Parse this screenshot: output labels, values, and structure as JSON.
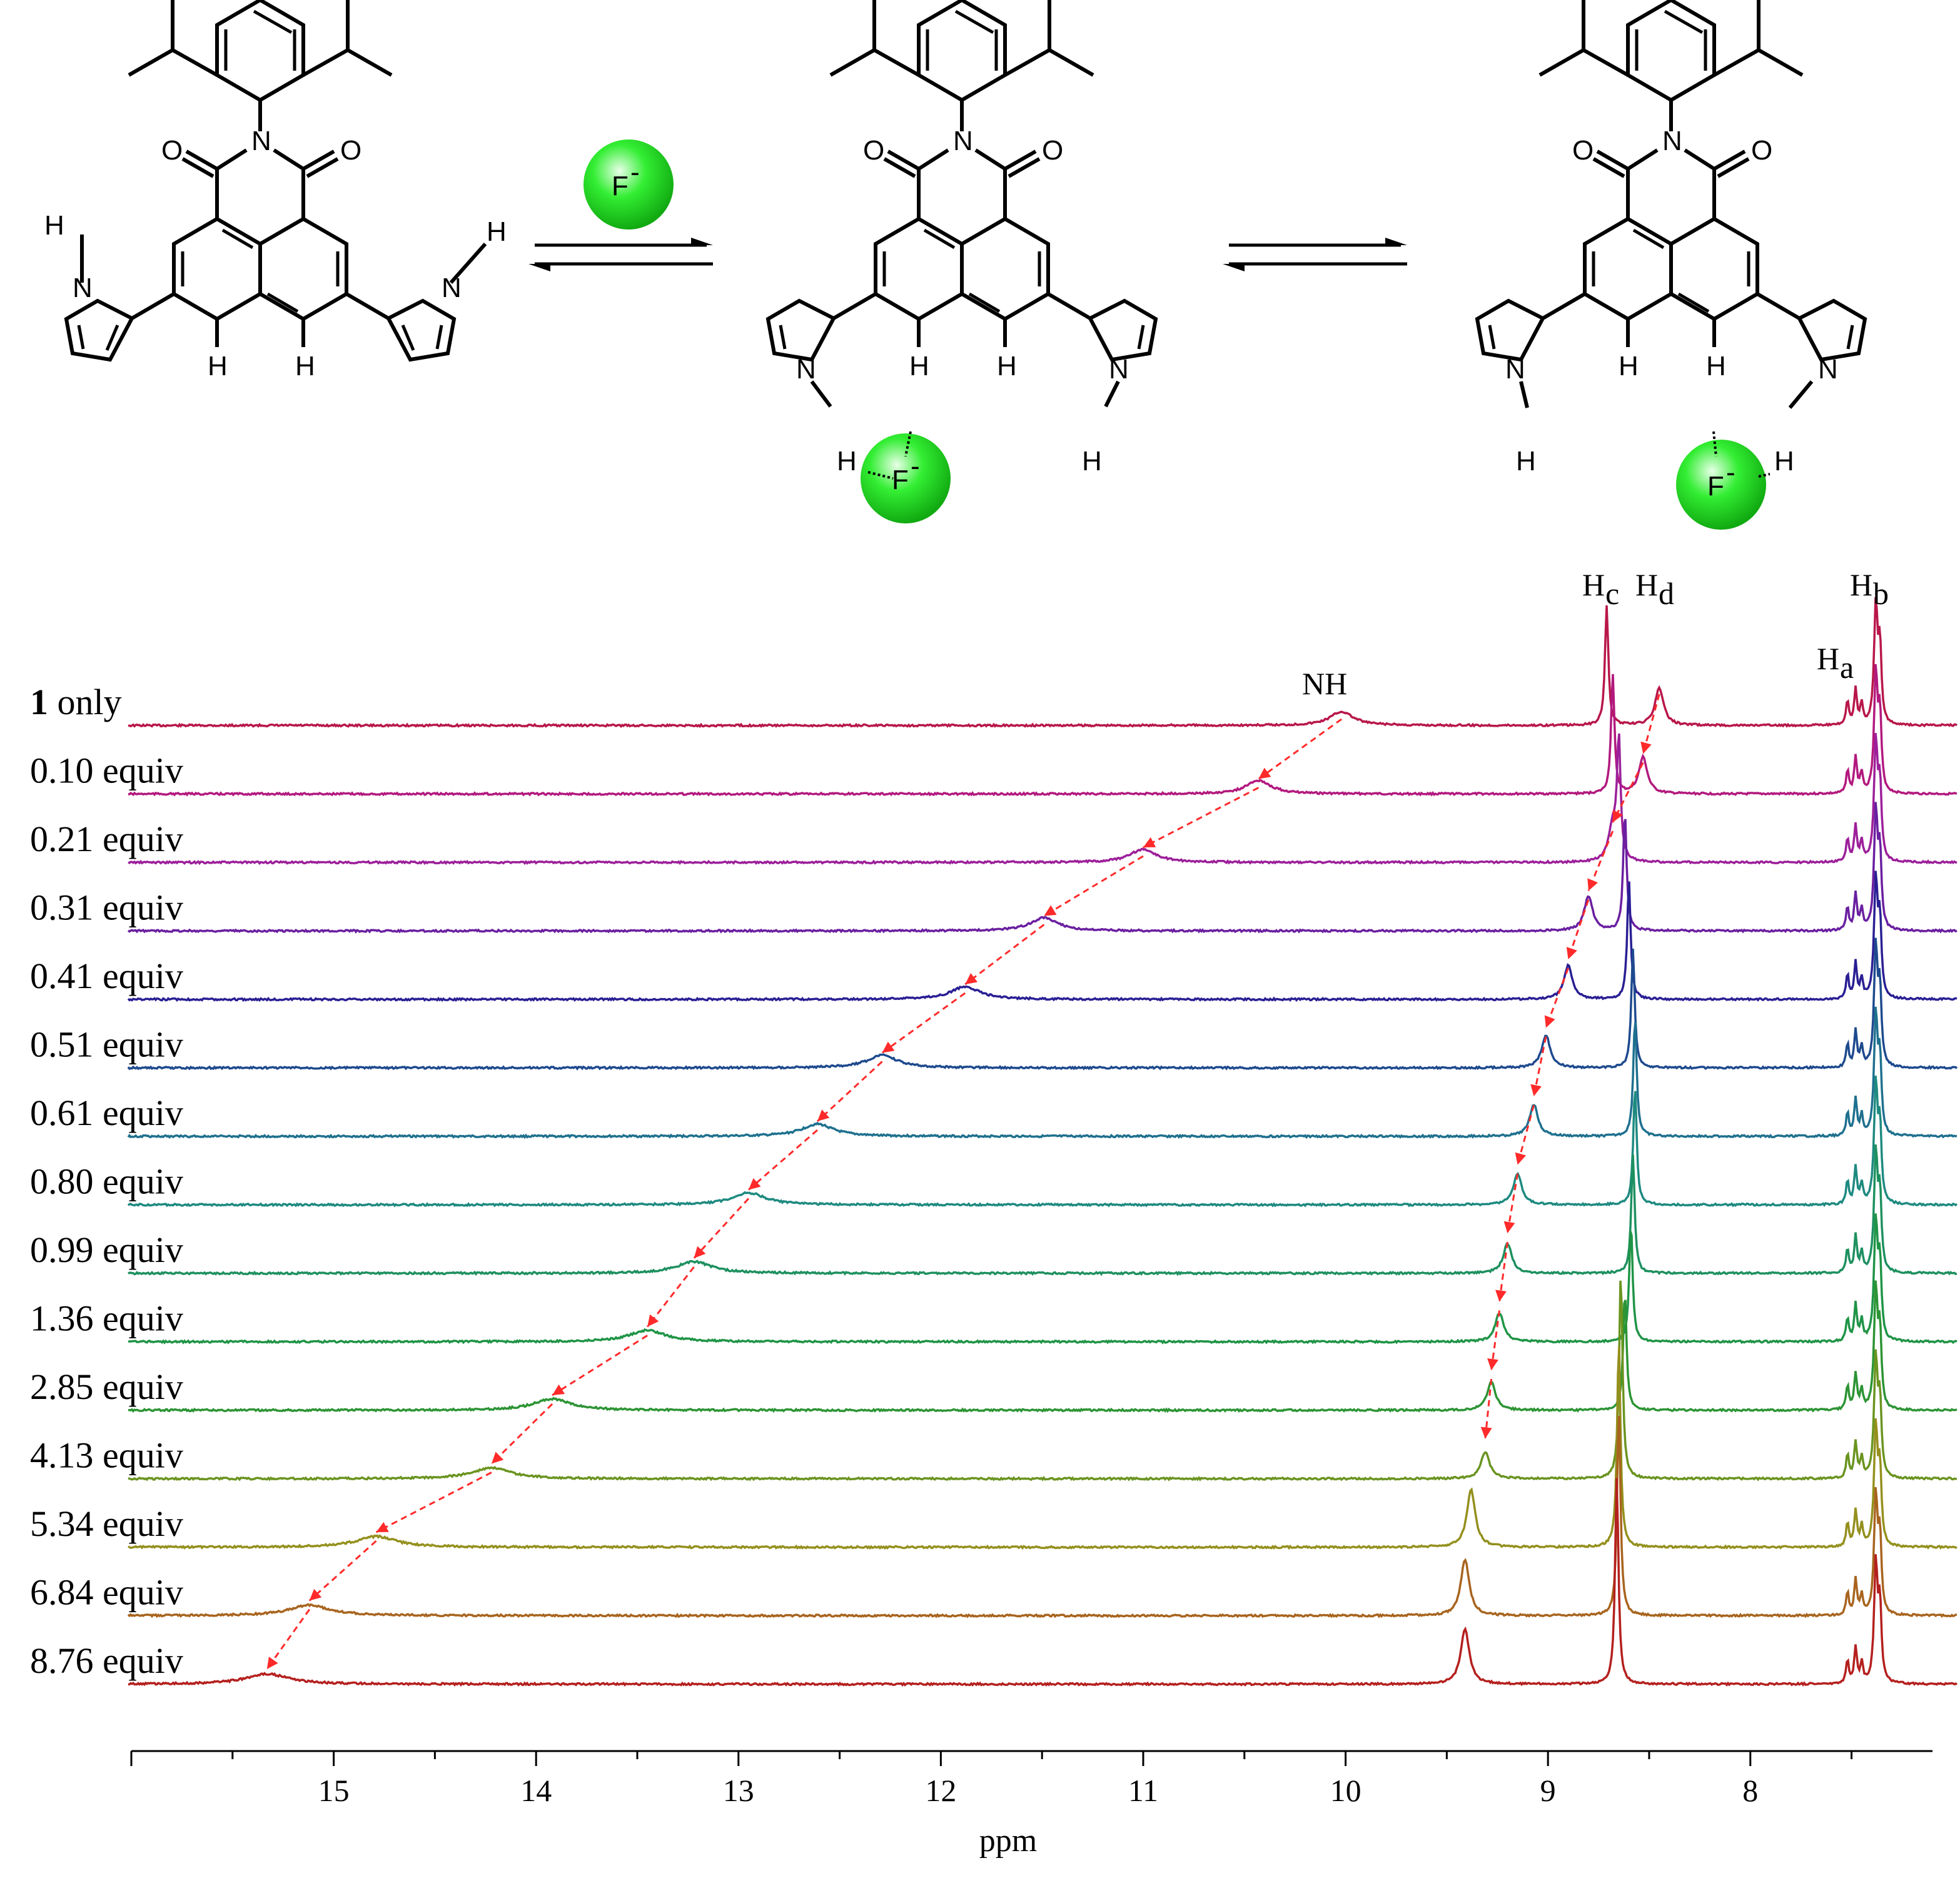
{
  "scheme": {
    "anion_label": "F",
    "anion_charge": "-",
    "ball_color": "#22e022",
    "atoms": {
      "N": "N",
      "O": "O",
      "H": "H"
    }
  },
  "chart_data": {
    "type": "stacked-nmr-spectra",
    "title": "",
    "xlabel": "ppm",
    "xlim": [
      16,
      7.1
    ],
    "x_reversed": true,
    "xticks": [
      15,
      14,
      13,
      12,
      11,
      10,
      9,
      8
    ],
    "grid": false,
    "peak_labels": [
      "NH",
      "Hc",
      "Hd",
      "Ha",
      "Hb"
    ],
    "peak_label_text": {
      "NH": "NH",
      "Hc_base": "H",
      "Hc_sub": "c",
      "Hd_base": "H",
      "Hd_sub": "d",
      "Ha_base": "H",
      "Ha_sub": "a",
      "Hb_base": "H",
      "Hb_sub": "b"
    },
    "first_label": {
      "bold": "1",
      "rest": " only"
    },
    "series": [
      {
        "name": "1 only",
        "color": "#b8174a",
        "NH": 10.02,
        "Hd": 8.45,
        "Hc": 8.71
      },
      {
        "name": "0.10 equiv",
        "color": "#b2197e",
        "NH": 10.43,
        "Hd": 8.53,
        "Hc": 8.68
      },
      {
        "name": "0.21 equiv",
        "color": "#9c1f9a",
        "NH": 11.0,
        "Hd": 8.68,
        "Hc": 8.65
      },
      {
        "name": "0.31 equiv",
        "color": "#6a1fa0",
        "NH": 11.49,
        "Hd": 8.8,
        "Hc": 8.62
      },
      {
        "name": "0.41 equiv",
        "color": "#2a1f94",
        "NH": 11.88,
        "Hd": 8.9,
        "Hc": 8.6
      },
      {
        "name": "0.51 equiv",
        "color": "#1e4a8e",
        "NH": 12.29,
        "Hd": 9.01,
        "Hc": 8.58
      },
      {
        "name": "0.61 equiv",
        "color": "#1e708e",
        "NH": 12.61,
        "Hd": 9.07,
        "Hc": 8.57
      },
      {
        "name": "0.80 equiv",
        "color": "#1e8a80",
        "NH": 12.95,
        "Hd": 9.15,
        "Hc": 8.57
      },
      {
        "name": "0.99 equiv",
        "color": "#1e9060",
        "NH": 13.22,
        "Hd": 9.2,
        "Hc": 8.58
      },
      {
        "name": "1.36 equiv",
        "color": "#1f9446",
        "NH": 13.45,
        "Hd": 9.24,
        "Hc": 8.59
      },
      {
        "name": "2.85 equiv",
        "color": "#2c9434",
        "NH": 13.92,
        "Hd": 9.28,
        "Hc": 8.62
      },
      {
        "name": "4.13 equiv",
        "color": "#6a9420",
        "NH": 14.22,
        "Hd": 9.31,
        "Hc": 8.64
      },
      {
        "name": "5.34 equiv",
        "color": "#94901e",
        "NH": 14.79,
        "Hd": 9.38,
        "Hc": 8.65
      },
      {
        "name": "6.84 equiv",
        "color": "#a8641e",
        "NH": 15.12,
        "Hd": 9.41,
        "Hc": 8.65
      },
      {
        "name": "8.76 equiv",
        "color": "#b4201e",
        "NH": 15.33,
        "Hd": 9.41,
        "Hc": 8.66
      }
    ],
    "arrow_color": "#ff2a2a"
  }
}
